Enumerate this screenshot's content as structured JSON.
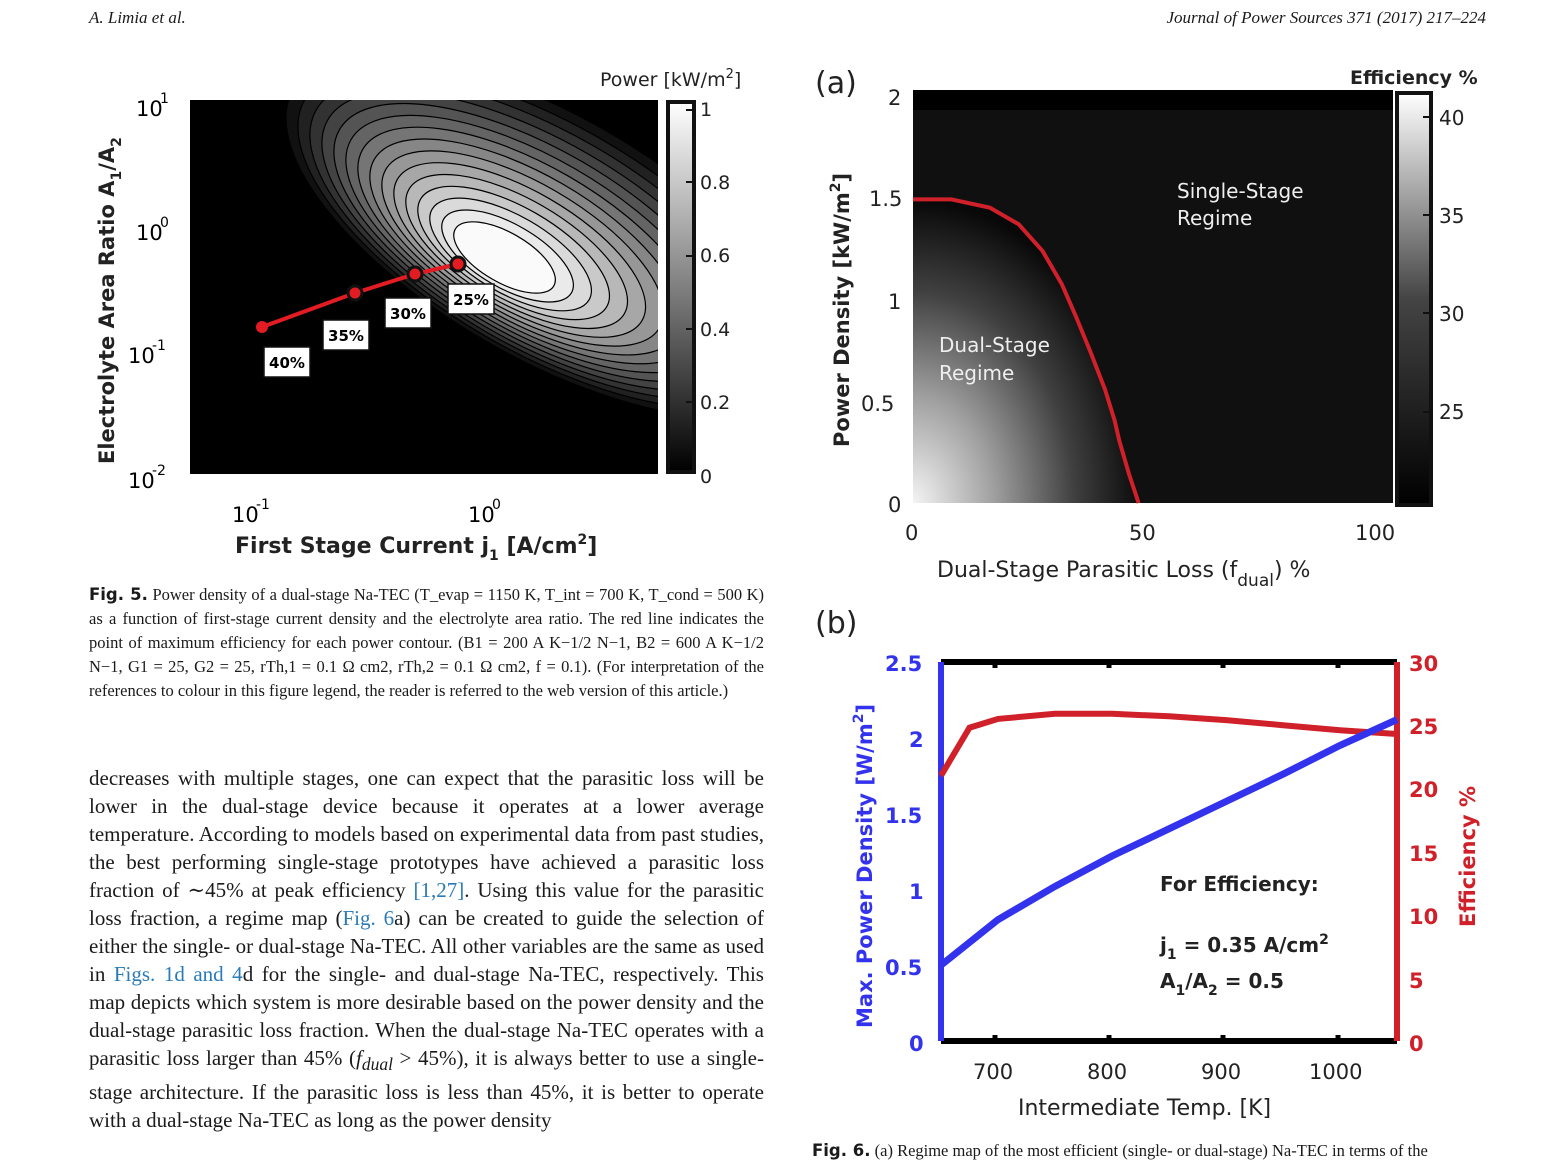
{
  "header": {
    "authors": "A. Limia et al.",
    "journal": "Journal of Power Sources 371 (2017) 217–224"
  },
  "fig5": {
    "colorbar_title": "Power [kW/m",
    "colorbar_title_sup": "2",
    "colorbar_title_end": "]",
    "colorbar_ticks": [
      "1",
      "0.8",
      "0.6",
      "0.4",
      "0.2",
      "0"
    ],
    "ylabel": "Electrolyte Area Ratio A",
    "ylabel_sub1": "1",
    "ylabel_mid": "/A",
    "ylabel_sub2": "2",
    "ytick_exps": [
      "1",
      "0",
      "-1",
      "-2"
    ],
    "xtick_exps": [
      "-1",
      "0"
    ],
    "tick_base": "10",
    "xlabel": "First Stage Current j",
    "xlabel_sub": "1",
    "xlabel_unit": " [A/cm",
    "xlabel_sup": "2",
    "xlabel_end": "]",
    "efficiency_labels": [
      "40%",
      "35%",
      "30%",
      "25%"
    ]
  },
  "fig5_caption": {
    "label": "Fig. 5.",
    "text": "Power density of a dual-stage Na-TEC (T_evap = 1150 K, T_int = 700 K, T_cond = 500 K) as a function of first-stage current density and the electrolyte area ratio. The red line indicates the point of maximum efficiency for each power contour. (B1 = 200 A K−1/2 N−1, B2 = 600 A K−1/2 N−1, G1 = 25, G2 = 25, rTh,1 = 0.1 Ω cm2, rTh,2 = 0.1 Ω cm2, f = 0.1). (For interpretation of the references to colour in this figure legend, the reader is referred to the web version of this article.)"
  },
  "fig6a": {
    "panel_label": "(a)",
    "colorbar_title": "Efficiency %",
    "colorbar_ticks": [
      "40",
      "35",
      "30",
      "25"
    ],
    "ylabel": "Power Density [kW/m",
    "ylabel_sup": "2",
    "ylabel_end": "]",
    "yticks": [
      "2",
      "1.5",
      "1",
      "0.5",
      "0"
    ],
    "xticks": [
      "0",
      "50",
      "100"
    ],
    "xlabel": "Dual-Stage Parasitic Loss (f",
    "xlabel_sub": "dual",
    "xlabel_end": ") %",
    "region_single_1": "Single-Stage",
    "region_single_2": "Regime",
    "region_dual_1": "Dual-Stage",
    "region_dual_2": "Regime"
  },
  "fig6b": {
    "panel_label": "(b)",
    "ylabel_left": "Max. Power Density [W/m",
    "ylabel_left_sup": "2",
    "ylabel_left_end": "]",
    "ylabel_right": "Efficiency %",
    "yticks_left": [
      "2.5",
      "2",
      "1.5",
      "1",
      "0.5",
      "0"
    ],
    "yticks_right": [
      "30",
      "25",
      "20",
      "15",
      "10",
      "5",
      "0"
    ],
    "xticks": [
      "700",
      "800",
      "900",
      "1000"
    ],
    "xlabel": "Intermediate Temp. [K]",
    "annotation_title": "For Efficiency:",
    "annotation_j": "j",
    "annotation_j_sub": "1",
    "annotation_j_val": " = 0.35 A/cm",
    "annotation_j_sup": "2",
    "annotation_a": "A",
    "annotation_a_sub1": "1",
    "annotation_a_mid": "/A",
    "annotation_a_sub2": "2",
    "annotation_a_val": " = 0.5",
    "colors": {
      "power": "#3333ee",
      "efficiency": "#d0202a"
    }
  },
  "chart_data": [
    {
      "type": "heatmap",
      "title": "",
      "xlabel": "First Stage Current j1 [A/cm2]",
      "ylabel": "Electrolyte Area Ratio A1/A2",
      "xscale": "log",
      "yscale": "log",
      "colorbar": {
        "label": "Power [kW/m2]",
        "range": [
          0,
          1
        ]
      },
      "peak": {
        "x": 1.4,
        "y": 0.5
      },
      "max_efficiency_line": {
        "x": [
          0.1,
          0.28,
          0.48,
          0.72
        ],
        "y": [
          0.17,
          0.3,
          0.4,
          0.52
        ],
        "labels": [
          "40%",
          "35%",
          "30%",
          "25%"
        ]
      }
    },
    {
      "type": "heatmap",
      "title": "",
      "xlabel": "Dual-Stage Parasitic Loss (fdual) %",
      "ylabel": "Power Density [kW/m2]",
      "xlim": [
        0,
        100
      ],
      "ylim": [
        0,
        2
      ],
      "colorbar": {
        "label": "Efficiency %",
        "ticks": [
          25,
          30,
          35,
          40
        ]
      },
      "boundary": {
        "x": [
          0,
          8,
          16,
          22,
          27,
          31,
          34,
          37,
          40,
          42,
          43,
          44,
          45,
          46,
          47
        ],
        "y": [
          1.47,
          1.47,
          1.43,
          1.35,
          1.22,
          1.06,
          0.9,
          0.73,
          0.55,
          0.4,
          0.3,
          0.22,
          0.14,
          0.07,
          0
        ]
      }
    },
    {
      "type": "line",
      "title": "",
      "xlabel": "Intermediate Temp. [K]",
      "xlim": [
        650,
        1050
      ],
      "series": [
        {
          "name": "",
          "axis": "left",
          "ylabel": "Max. Power Density [W/m2]",
          "ylim": [
            0,
            2.5
          ],
          "x": [
            650,
            700,
            750,
            800,
            850,
            900,
            950,
            1000,
            1050
          ],
          "values": [
            0.5,
            0.8,
            1.02,
            1.22,
            1.4,
            1.58,
            1.76,
            1.95,
            2.12
          ]
        },
        {
          "name": "",
          "axis": "right",
          "ylabel": "Efficiency %",
          "ylim": [
            0,
            30
          ],
          "x": [
            650,
            675,
            700,
            750,
            800,
            850,
            900,
            950,
            1000,
            1050
          ],
          "values": [
            21,
            24.8,
            25.5,
            25.9,
            25.9,
            25.7,
            25.4,
            25.0,
            24.6,
            24.3
          ]
        }
      ]
    }
  ]
}
